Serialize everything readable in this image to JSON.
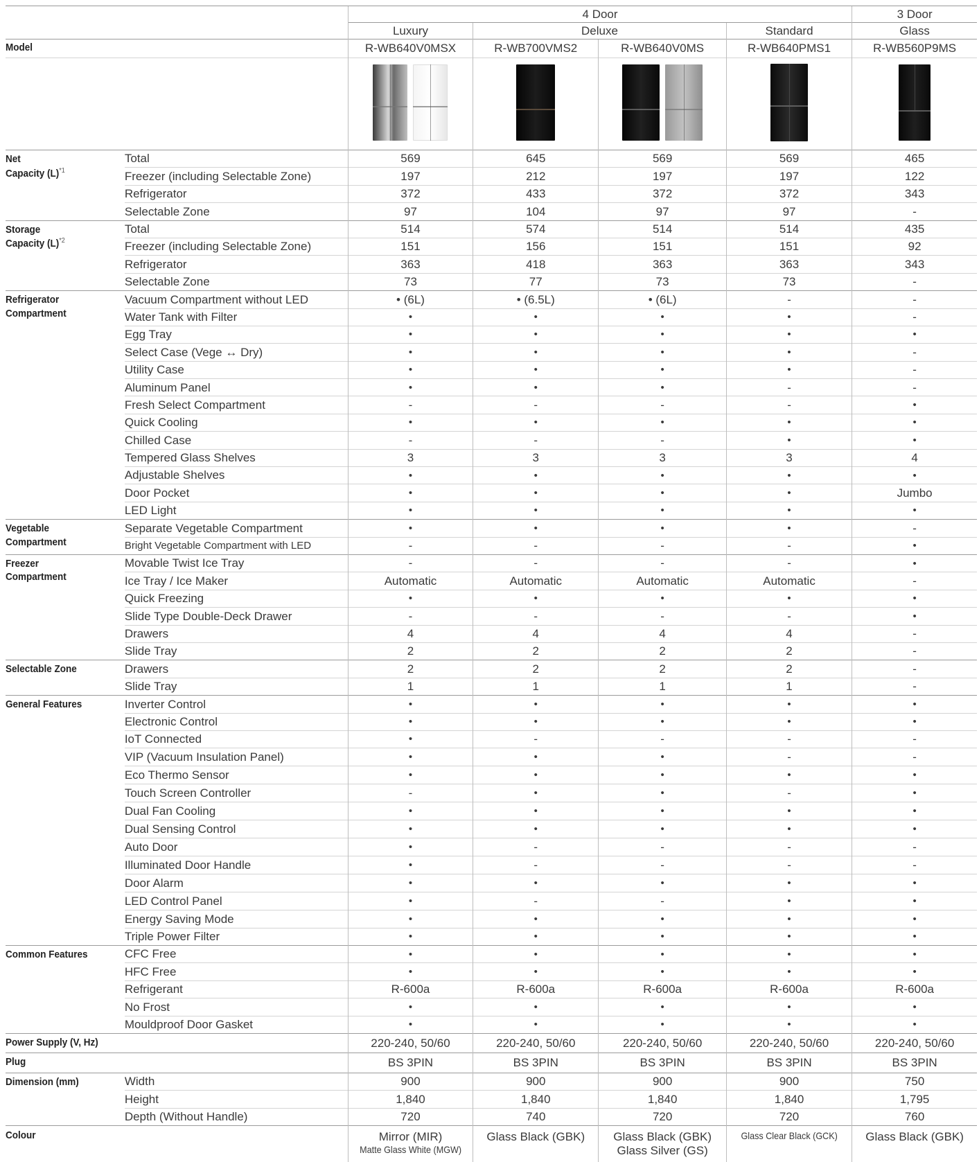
{
  "header": {
    "four_door": "4 Door",
    "three_door": "3 Door",
    "luxury": "Luxury",
    "deluxe": "Deluxe",
    "standard": "Standard",
    "glass": "Glass",
    "model_label": "Model",
    "models": [
      "R-WB640V0MSX",
      "R-WB700VMS2",
      "R-WB640V0MS",
      "R-WB640PMS1",
      "R-WB560P9MS"
    ]
  },
  "product_image_colors": [
    "#8a8a8a",
    "#111111",
    "#151515",
    "#1a1a1a",
    "#141414"
  ],
  "rows": [
    {
      "cat": "Net\nCapacity (L)",
      "note": "*1",
      "sub": "Total",
      "v": [
        "569",
        "645",
        "569",
        "569",
        "465"
      ],
      "grp": true
    },
    {
      "sub": "Freezer (including Selectable Zone)",
      "v": [
        "197",
        "212",
        "197",
        "197",
        "122"
      ]
    },
    {
      "sub": "Refrigerator",
      "v": [
        "372",
        "433",
        "372",
        "372",
        "343"
      ]
    },
    {
      "sub": "Selectable Zone",
      "v": [
        "97",
        "104",
        "97",
        "97",
        "-"
      ]
    },
    {
      "cat": "Storage\nCapacity (L)",
      "note": "*2",
      "sub": "Total",
      "v": [
        "514",
        "574",
        "514",
        "514",
        "435"
      ],
      "grp": true
    },
    {
      "sub": "Freezer (including Selectable Zone)",
      "v": [
        "151",
        "156",
        "151",
        "151",
        "92"
      ]
    },
    {
      "sub": "Refrigerator",
      "v": [
        "363",
        "418",
        "363",
        "363",
        "343"
      ]
    },
    {
      "sub": "Selectable Zone",
      "v": [
        "73",
        "77",
        "73",
        "73",
        "-"
      ]
    },
    {
      "cat": "Refrigerator\nCompartment",
      "sub": "Vacuum Compartment without LED",
      "v": [
        "• (6L)",
        "• (6.5L)",
        "• (6L)",
        "-",
        "-"
      ],
      "grp": true
    },
    {
      "sub": "Water Tank with Filter",
      "v": [
        "•",
        "•",
        "•",
        "•",
        "-"
      ]
    },
    {
      "sub": "Egg Tray",
      "v": [
        "•",
        "•",
        "•",
        "•",
        "•"
      ]
    },
    {
      "sub": "Select Case (Vege ↔ Dry)",
      "v": [
        "•",
        "•",
        "•",
        "•",
        "-"
      ]
    },
    {
      "sub": "Utility Case",
      "v": [
        "•",
        "•",
        "•",
        "•",
        "-"
      ]
    },
    {
      "sub": "Aluminum Panel",
      "v": [
        "•",
        "•",
        "•",
        "-",
        "-"
      ]
    },
    {
      "sub": "Fresh Select Compartment",
      "v": [
        "-",
        "-",
        "-",
        "-",
        "•"
      ]
    },
    {
      "sub": "Quick Cooling",
      "v": [
        "•",
        "•",
        "•",
        "•",
        "•"
      ]
    },
    {
      "sub": "Chilled Case",
      "v": [
        "-",
        "-",
        "-",
        "•",
        "•"
      ]
    },
    {
      "sub": "Tempered Glass Shelves",
      "v": [
        "3",
        "3",
        "3",
        "3",
        "4"
      ]
    },
    {
      "sub": "Adjustable Shelves",
      "v": [
        "•",
        "•",
        "•",
        "•",
        "•"
      ]
    },
    {
      "sub": "Door Pocket",
      "v": [
        "•",
        "•",
        "•",
        "•",
        "Jumbo"
      ]
    },
    {
      "sub": "LED Light",
      "v": [
        "•",
        "•",
        "•",
        "•",
        "•"
      ]
    },
    {
      "cat": "Vegetable\nCompartment",
      "sub": "Separate Vegetable Compartment",
      "v": [
        "•",
        "•",
        "•",
        "•",
        "-"
      ],
      "grp": true
    },
    {
      "sub": "Bright Vegetable Compartment with LED",
      "v": [
        "-",
        "-",
        "-",
        "-",
        "•"
      ],
      "smallsub": true
    },
    {
      "cat": "Freezer\nCompartment",
      "sub": "Movable Twist Ice Tray",
      "v": [
        "-",
        "-",
        "-",
        "-",
        "•"
      ],
      "grp": true
    },
    {
      "sub": "Ice Tray / Ice Maker",
      "v": [
        "Automatic",
        "Automatic",
        "Automatic",
        "Automatic",
        "-"
      ]
    },
    {
      "sub": "Quick Freezing",
      "v": [
        "•",
        "•",
        "•",
        "•",
        "•"
      ]
    },
    {
      "sub": "Slide Type Double-Deck Drawer",
      "v": [
        "-",
        "-",
        "-",
        "-",
        "•"
      ]
    },
    {
      "sub": "Drawers",
      "v": [
        "4",
        "4",
        "4",
        "4",
        "-"
      ]
    },
    {
      "sub": "Slide Tray",
      "v": [
        "2",
        "2",
        "2",
        "2",
        "-"
      ]
    },
    {
      "cat": "Selectable Zone",
      "sub": "Drawers",
      "v": [
        "2",
        "2",
        "2",
        "2",
        "-"
      ],
      "grp": true
    },
    {
      "sub": "Slide Tray",
      "v": [
        "1",
        "1",
        "1",
        "1",
        "-"
      ]
    },
    {
      "cat": "General Features",
      "sub": "Inverter Control",
      "v": [
        "•",
        "•",
        "•",
        "•",
        "•"
      ],
      "grp": true
    },
    {
      "sub": "Electronic Control",
      "v": [
        "•",
        "•",
        "•",
        "•",
        "•"
      ]
    },
    {
      "sub": "IoT Connected",
      "v": [
        "•",
        "-",
        "-",
        "-",
        "-"
      ]
    },
    {
      "sub": "VIP (Vacuum Insulation Panel)",
      "v": [
        "•",
        "•",
        "•",
        "-",
        "-"
      ],
      "tall": true
    },
    {
      "sub": "Eco Thermo Sensor",
      "v": [
        "•",
        "•",
        "•",
        "•",
        "•"
      ],
      "tall": true
    },
    {
      "sub": "Touch Screen Controller",
      "v": [
        "-",
        "•",
        "•",
        "-",
        "•"
      ],
      "tall": true
    },
    {
      "sub": "Dual Fan Cooling",
      "v": [
        "•",
        "•",
        "•",
        "•",
        "•"
      ],
      "tall": true
    },
    {
      "sub": "Dual Sensing Control",
      "v": [
        "•",
        "•",
        "•",
        "•",
        "•"
      ],
      "tall": true
    },
    {
      "sub": "Auto Door",
      "v": [
        "•",
        "-",
        "-",
        "-",
        "-"
      ],
      "tall": true
    },
    {
      "sub": "Illuminated Door Handle",
      "v": [
        "•",
        "-",
        "-",
        "-",
        "-"
      ],
      "tall": true
    },
    {
      "sub": "Door Alarm",
      "v": [
        "•",
        "•",
        "•",
        "•",
        "•"
      ],
      "tall": true
    },
    {
      "sub": "LED Control Panel",
      "v": [
        "•",
        "-",
        "-",
        "•",
        "•"
      ],
      "tall": true
    },
    {
      "sub": "Energy Saving Mode",
      "v": [
        "•",
        "•",
        "•",
        "•",
        "•"
      ]
    },
    {
      "sub": "Triple Power Filter",
      "v": [
        "•",
        "•",
        "•",
        "•",
        "•"
      ]
    },
    {
      "cat": "Common Features",
      "sub": "CFC Free",
      "v": [
        "•",
        "•",
        "•",
        "•",
        "•"
      ],
      "grp": true
    },
    {
      "sub": "HFC Free",
      "v": [
        "•",
        "•",
        "•",
        "•",
        "•"
      ]
    },
    {
      "sub": "Refrigerant",
      "v": [
        "R-600a",
        "R-600a",
        "R-600a",
        "R-600a",
        "R-600a"
      ]
    },
    {
      "sub": "No Frost",
      "v": [
        "•",
        "•",
        "•",
        "•",
        "•"
      ]
    },
    {
      "sub": "Mouldproof Door Gasket",
      "v": [
        "•",
        "•",
        "•",
        "•",
        "•"
      ]
    },
    {
      "cat": "Power Supply (V, Hz)",
      "sub": "",
      "v": [
        "220-240, 50/60",
        "220-240, 50/60",
        "220-240, 50/60",
        "220-240, 50/60",
        "220-240, 50/60"
      ],
      "grp": true
    },
    {
      "cat": "Plug",
      "sub": "",
      "v": [
        "BS 3PIN",
        "BS 3PIN",
        "BS 3PIN",
        "BS 3PIN",
        "BS 3PIN"
      ],
      "grp": true
    },
    {
      "cat": "Dimension (mm)",
      "sub": "Width",
      "v": [
        "900",
        "900",
        "900",
        "900",
        "750"
      ],
      "grp": true
    },
    {
      "sub": "Height",
      "v": [
        "1,840",
        "1,840",
        "1,840",
        "1,840",
        "1,795"
      ]
    },
    {
      "sub": "Depth (Without Handle)",
      "v": [
        "720",
        "740",
        "720",
        "720",
        "760"
      ]
    }
  ],
  "colour": {
    "label": "Colour",
    "values": [
      [
        "Mirror (MIR)",
        "Matte Glass White (MGW)"
      ],
      [
        "Glass Black (GBK)"
      ],
      [
        "Glass Black (GBK)",
        "Glass Silver (GS)"
      ],
      [
        "Glass Clear Black (GCK)"
      ],
      [
        "Glass Black (GBK)"
      ]
    ]
  }
}
